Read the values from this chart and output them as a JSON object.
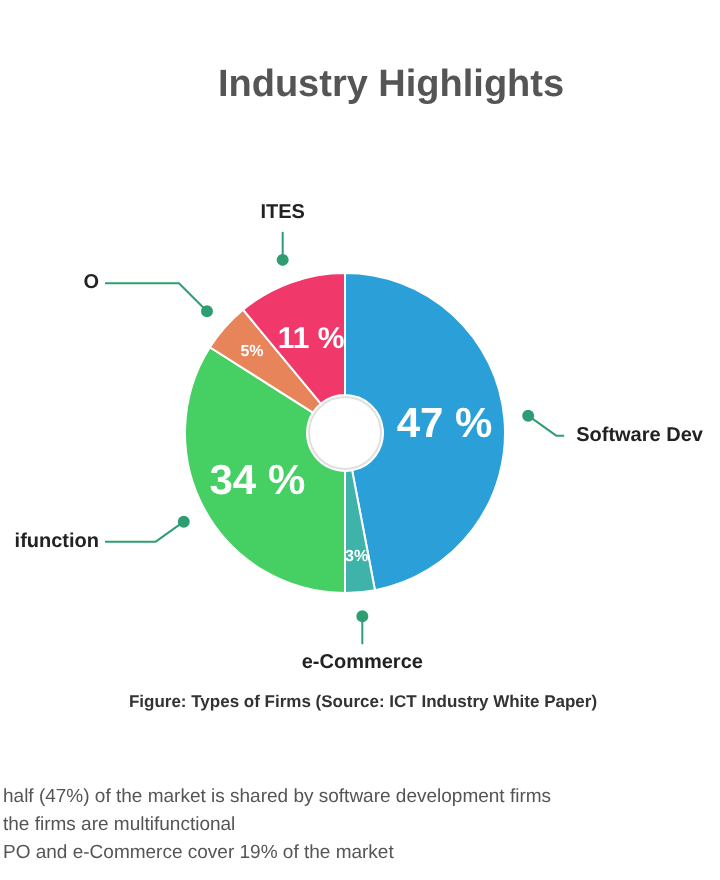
{
  "chart_data": {
    "type": "donut",
    "title": "Industry Highlights",
    "categories": [
      "Software Dev",
      "e-Commerce",
      "ifunction",
      "O",
      "ITES"
    ],
    "values": [
      47,
      3,
      34,
      5,
      11
    ],
    "colors": [
      "#2a9fd8",
      "#3fb3a9",
      "#46cf63",
      "#e8845a",
      "#f0386b"
    ],
    "value_labels": [
      "47 %",
      "3%",
      "34 %",
      "5%",
      "11 %"
    ],
    "annotations": [
      "Figure: Types of Firms (Source: ICT Industry White Paper)",
      "half (47%) of the market is shared by software development firms",
      "the firms are multifunctional",
      "PO and e-Commerce cover 19% of the market"
    ]
  }
}
